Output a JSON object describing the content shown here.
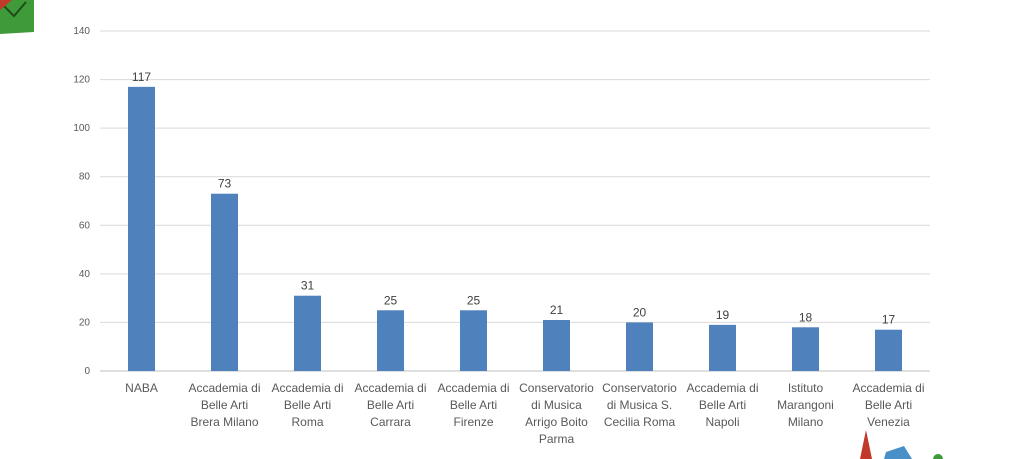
{
  "chart_data": {
    "type": "bar",
    "title": "",
    "xlabel": "",
    "ylabel": "",
    "ylim": [
      0,
      140
    ],
    "yticks": [
      0,
      20,
      40,
      60,
      80,
      100,
      120,
      140
    ],
    "grid": true,
    "bar_color": "#4f81bd",
    "categories": [
      [
        "NABA"
      ],
      [
        "Accademia di",
        "Belle Arti",
        "Brera Milano"
      ],
      [
        "Accademia di",
        "Belle Arti",
        "Roma"
      ],
      [
        "Accademia di",
        "Belle Arti",
        "Carrara"
      ],
      [
        "Accademia di",
        "Belle Arti",
        "Firenze"
      ],
      [
        "Conservatorio",
        "di Musica",
        "Arrigo Boito",
        "Parma"
      ],
      [
        "Conservatorio",
        "di Musica S.",
        "Cecilia Roma"
      ],
      [
        "Accademia di",
        "Belle Arti",
        "Napoli"
      ],
      [
        "Istituto",
        "Marangoni",
        "Milano"
      ],
      [
        "Accademia di",
        "Belle Arti",
        "Venezia"
      ]
    ],
    "values": [
      117,
      73,
      31,
      25,
      25,
      21,
      20,
      19,
      18,
      17
    ]
  }
}
